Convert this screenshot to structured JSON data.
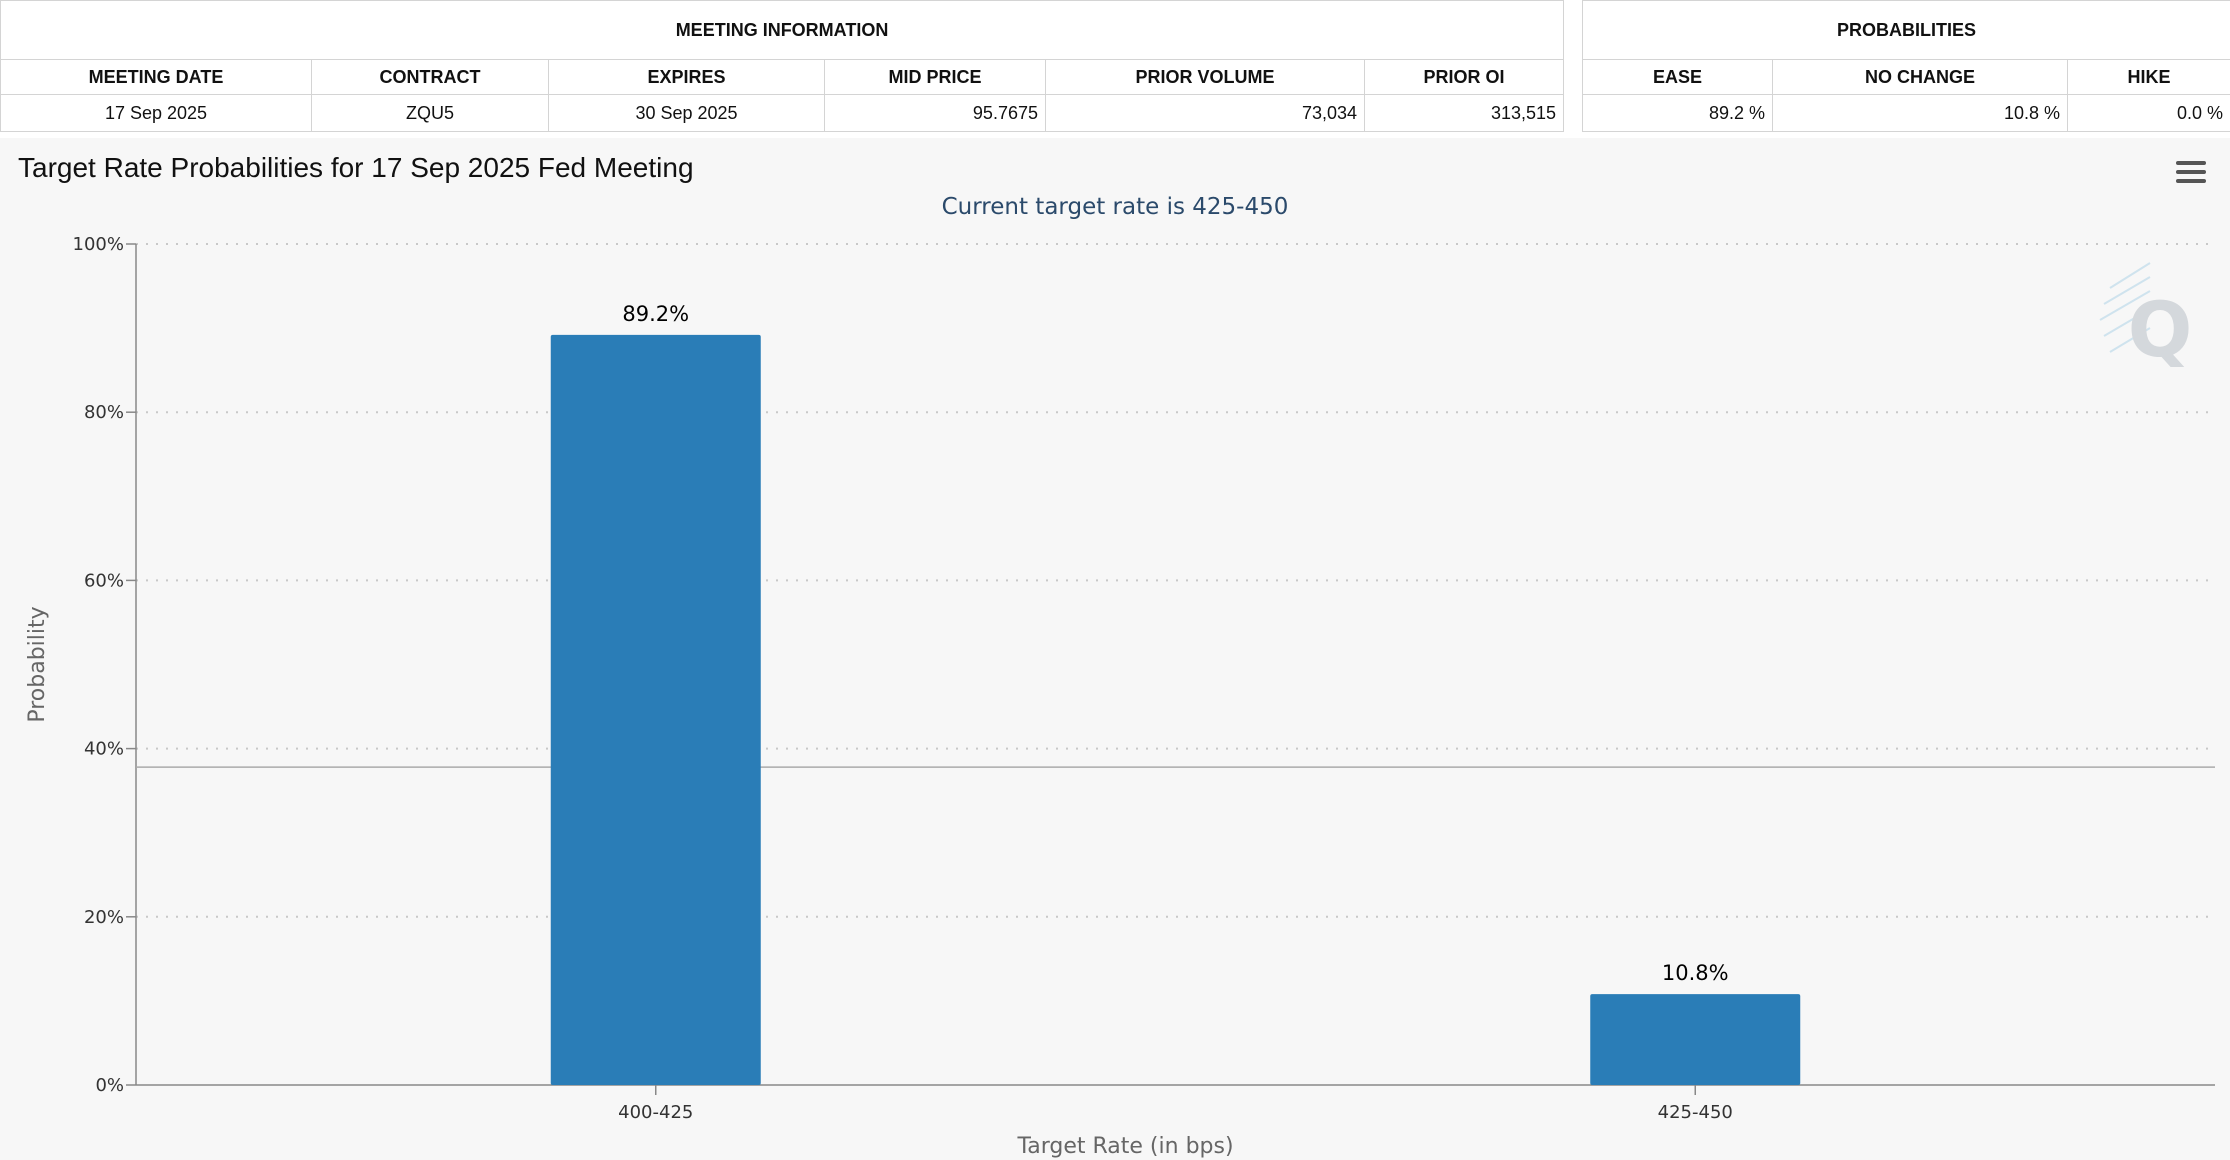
{
  "meeting_info": {
    "group_title": "MEETING INFORMATION",
    "headers": [
      "MEETING DATE",
      "CONTRACT",
      "EXPIRES",
      "MID PRICE",
      "PRIOR VOLUME",
      "PRIOR OI"
    ],
    "values": [
      "17 Sep 2025",
      "ZQU5",
      "30 Sep 2025",
      "95.7675",
      "73,034",
      "313,515"
    ]
  },
  "probabilities": {
    "group_title": "PROBABILITIES",
    "headers": [
      "EASE",
      "NO CHANGE",
      "HIKE"
    ],
    "values": [
      "89.2 %",
      "10.8 %",
      "0.0 %"
    ]
  },
  "chart_data": {
    "type": "bar",
    "title": "Target Rate Probabilities for 17 Sep 2025 Fed Meeting",
    "subtitle": "Current target rate is 425-450",
    "categories": [
      "400-425",
      "425-450"
    ],
    "values": [
      89.2,
      10.8
    ],
    "data_labels": [
      "89.2%",
      "10.8%"
    ],
    "xlabel": "Target Rate (in bps)",
    "ylabel": "Probability",
    "ylim": [
      0,
      100
    ],
    "yticks": [
      0,
      20,
      40,
      60,
      80,
      100
    ],
    "ytick_labels": [
      "0%",
      "20%",
      "40%",
      "60%",
      "80%",
      "100%"
    ],
    "reference_line_value": 37.8,
    "grid": true,
    "bar_color": "#2a7db7",
    "grid_color": "#c8c8c8"
  },
  "menu_icon": "hamburger-menu-icon",
  "watermark_icon": "q-watermark-icon"
}
